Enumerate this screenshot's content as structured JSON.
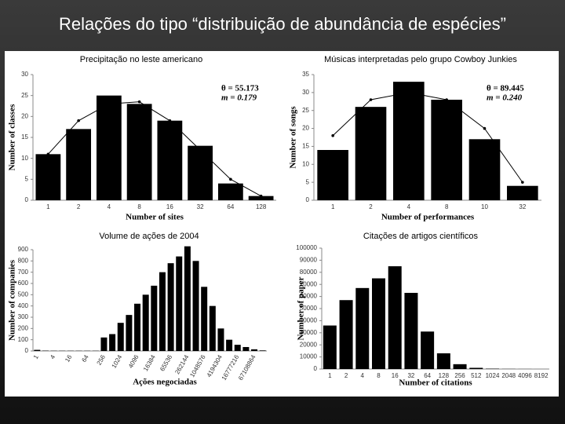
{
  "title": "Relações do tipo “distribuição de abundância de espécies”",
  "chart_data": [
    {
      "type": "bar",
      "title": "Precipitação no leste americano",
      "x_label": "Number of sites",
      "y_label": "Number of classes",
      "categories": [
        "1",
        "2",
        "4",
        "8",
        "16",
        "32",
        "64",
        "128"
      ],
      "values": [
        11,
        17,
        25,
        23,
        19,
        13,
        4,
        1
      ],
      "fit_values": [
        11,
        19,
        23,
        23.5,
        19,
        12,
        5,
        1
      ],
      "color": "#000000",
      "ylim": [
        0,
        30
      ],
      "yticks": [
        0,
        5,
        10,
        15,
        20,
        25,
        30
      ],
      "annotations": [
        "θ = 55.173",
        "m = 0.179"
      ]
    },
    {
      "type": "bar",
      "title": "Músicas interpretadas pelo grupo Cowboy Junkies",
      "x_label": "Number of performances",
      "y_label": "Number of songs",
      "categories": [
        "1",
        "2",
        "4",
        "8",
        "10",
        "32"
      ],
      "values": [
        14,
        26,
        33,
        28,
        17,
        4
      ],
      "fit_values": [
        18,
        28,
        30,
        28,
        20,
        5
      ],
      "color": "#000000",
      "ylim": [
        0,
        35
      ],
      "yticks": [
        0,
        5,
        10,
        15,
        20,
        25,
        30,
        35
      ],
      "annotations": [
        "θ = 89.445",
        "m = 0.240"
      ]
    },
    {
      "type": "bar",
      "title": "Volume de ações de 2004",
      "x_label": "Ações negociadas",
      "y_label": "Number of companies",
      "categories": [
        "1",
        null,
        "4",
        null,
        "16",
        null,
        "64",
        null,
        "256",
        null,
        "1024",
        null,
        "4096",
        null,
        "16384",
        null,
        "65536",
        null,
        "262144",
        null,
        "1048576",
        null,
        "4194304",
        null,
        "16777216",
        null,
        "67108864",
        null
      ],
      "values": [
        10,
        3,
        2,
        2,
        2,
        2,
        2,
        2,
        120,
        150,
        250,
        320,
        420,
        500,
        580,
        700,
        780,
        840,
        930,
        800,
        570,
        400,
        200,
        100,
        55,
        35,
        15,
        5
      ],
      "color": "#000000",
      "ylim": [
        0,
        900
      ],
      "yticks": [
        0,
        100,
        200,
        300,
        400,
        500,
        600,
        700,
        800,
        900
      ]
    },
    {
      "type": "bar",
      "title": "Citações de artigos científicos",
      "x_label": "Number of citations",
      "y_label": "Number of paper",
      "categories": [
        "1",
        "2",
        "4",
        "8",
        "16",
        "32",
        "64",
        "128",
        "256",
        "512",
        "1024",
        "2048",
        "4096",
        "8192"
      ],
      "values": [
        36000,
        57000,
        67000,
        75000,
        85000,
        63000,
        31000,
        13000,
        4000,
        1000,
        300,
        100,
        50,
        20
      ],
      "color": "#000000",
      "ylim": [
        0,
        100000
      ],
      "yticks": [
        0,
        10000,
        20000,
        30000,
        40000,
        50000,
        60000,
        70000,
        80000,
        90000,
        100000
      ]
    }
  ]
}
